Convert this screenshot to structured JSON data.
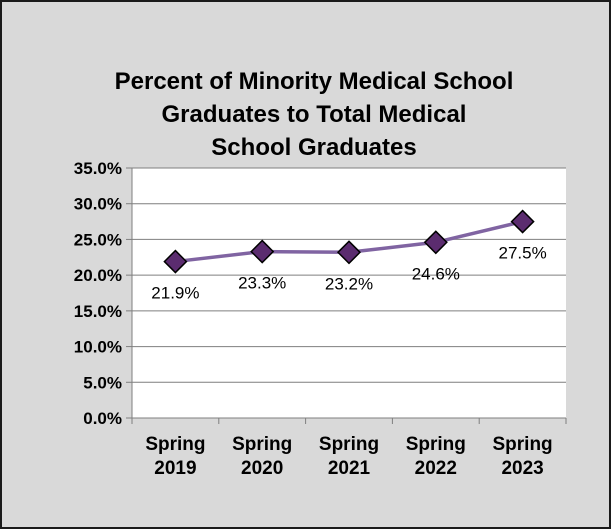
{
  "chart_data": {
    "type": "line",
    "title_lines": [
      "Percent of Minority Medical School",
      "Graduates to Total Medical",
      "School Graduates"
    ],
    "categories": [
      [
        "Spring",
        "2019"
      ],
      [
        "Spring",
        "2020"
      ],
      [
        "Spring",
        "2021"
      ],
      [
        "Spring",
        "2022"
      ],
      [
        "Spring",
        "2023"
      ]
    ],
    "values": [
      21.9,
      23.3,
      23.2,
      24.6,
      27.5
    ],
    "data_labels": [
      "21.9%",
      "23.3%",
      "23.2%",
      "24.6%",
      "27.5%"
    ],
    "ylim": [
      0,
      35
    ],
    "y_ticks": [
      {
        "value": 0,
        "label": "0.0%"
      },
      {
        "value": 5,
        "label": "5.0%"
      },
      {
        "value": 10,
        "label": "10.0%"
      },
      {
        "value": 15,
        "label": "15.0%"
      },
      {
        "value": 20,
        "label": "20.0%"
      },
      {
        "value": 25,
        "label": "25.0%"
      },
      {
        "value": 30,
        "label": "30.0%"
      },
      {
        "value": 35,
        "label": "35.0%"
      }
    ],
    "gridlines": true,
    "legend": "none",
    "colors": {
      "line": "#8064a2",
      "marker_fill": "#5b2c6f",
      "marker_stroke": "#000000",
      "plot_bg": "#ffffff",
      "chart_bg": "#d9d9d9",
      "grid": "#7f7f7f"
    }
  }
}
